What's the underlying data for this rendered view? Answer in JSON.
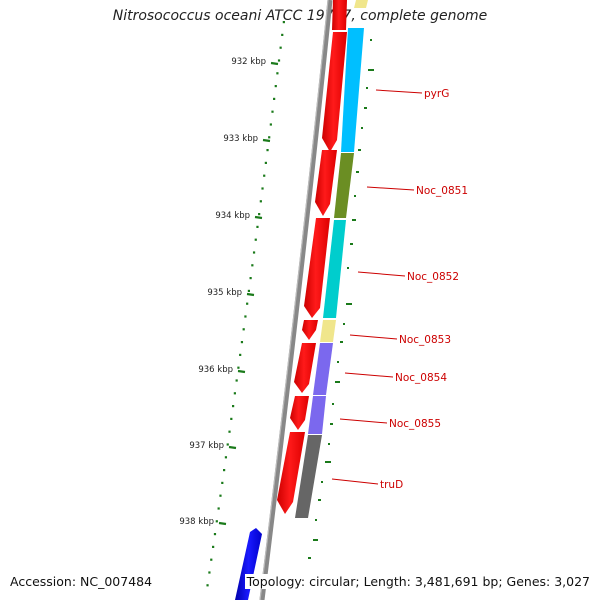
{
  "title": "Nitrosococcus oceani ATCC 19707, complete genome",
  "accession_text": "Accession: NC_007484",
  "summary_text": "Topology: circular; Length: 3,481,691 bp; Genes: 3,027",
  "scale_ticks": [
    "932 kbp",
    "933 kbp",
    "934 kbp",
    "935 kbp",
    "936 kbp",
    "937 kbp",
    "938 kbp"
  ],
  "gene_labels": [
    "pyrG",
    "Noc_0851",
    "Noc_0852",
    "Noc_0853",
    "Noc_0854",
    "Noc_0855",
    "truD"
  ],
  "colors": {
    "cds_forward": "#ff0000",
    "cds_reverse": "#0000ff",
    "backbone": "#888888",
    "label": "#cc0000",
    "gc_tick": "#1a7a1a",
    "cog_pyrG": "#00bfff",
    "cog_Noc_0851": "#6b8e23",
    "cog_Noc_0852": "#00cdcd",
    "cog_Noc_0853": "#f0e68c",
    "cog_Noc_0854": "#7b68ee",
    "cog_Noc_0855": "#7b68ee",
    "cog_truD": "#696969"
  }
}
